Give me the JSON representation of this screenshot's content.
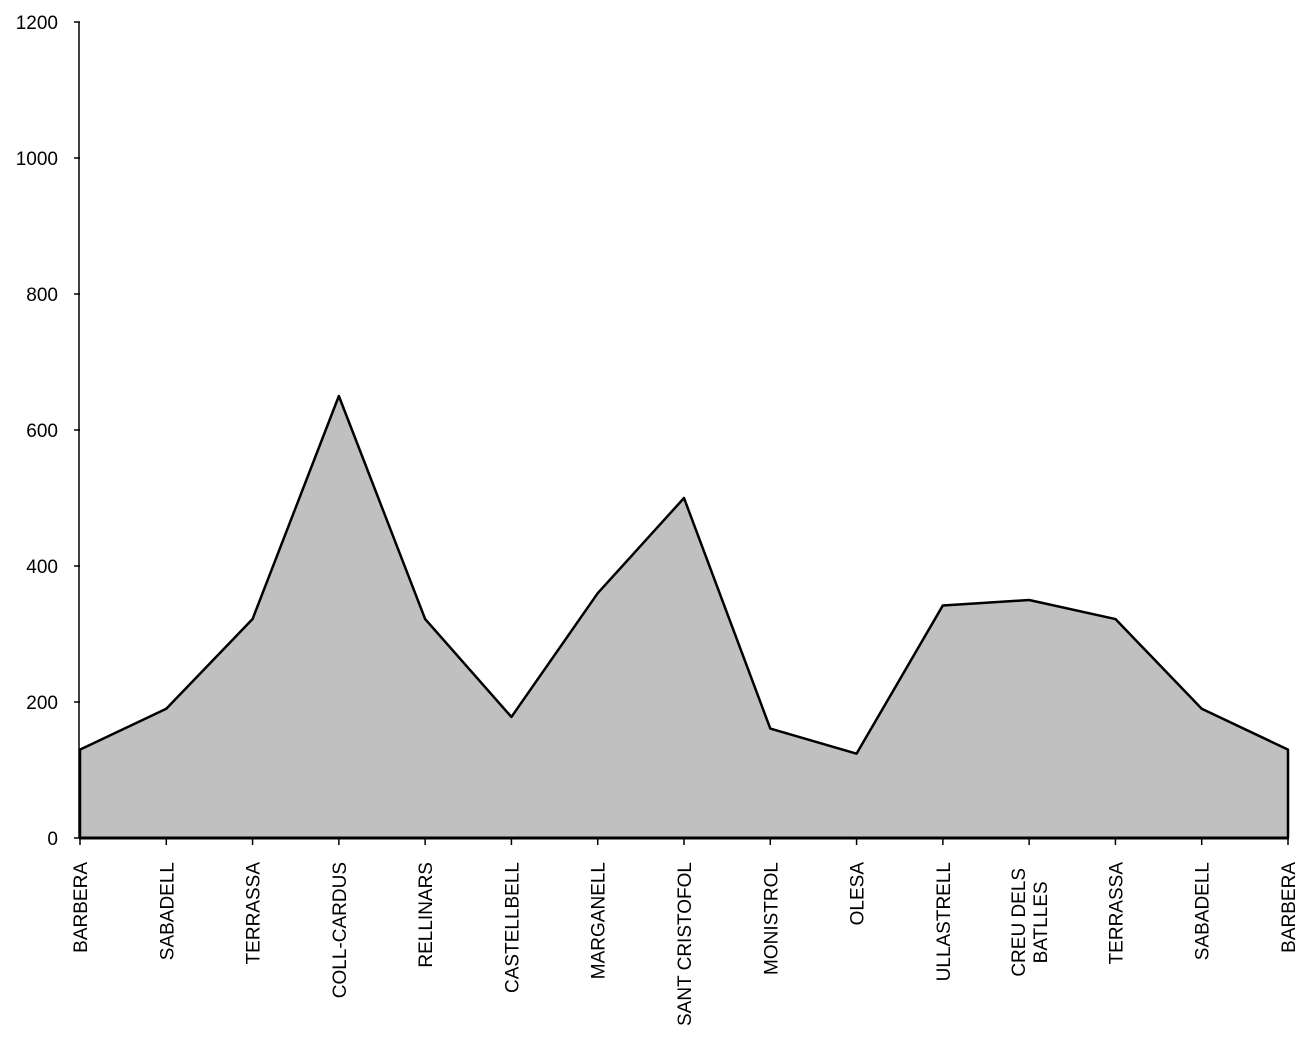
{
  "chart_data": {
    "type": "area",
    "categories": [
      [
        "BARBERA"
      ],
      [
        "SABADELL"
      ],
      [
        "TERRASSA"
      ],
      [
        "COLL-CARDUS"
      ],
      [
        "RELLINARS"
      ],
      [
        "CASTELLBELL"
      ],
      [
        "MARGANELL"
      ],
      [
        "SANT CRISTOFOL"
      ],
      [
        "MONISTROL"
      ],
      [
        "OLESA"
      ],
      [
        "ULLASTRELL"
      ],
      [
        "CREU DELS",
        "BATLLES"
      ],
      [
        "TERRASSA"
      ],
      [
        "SABADELL"
      ],
      [
        "BARBERA"
      ]
    ],
    "values": [
      130,
      190,
      322,
      650,
      322,
      178,
      360,
      500,
      161,
      124,
      342,
      350,
      322,
      190,
      130
    ],
    "title": "",
    "xlabel": "",
    "ylabel": "",
    "ylim": [
      0,
      1200
    ],
    "yticks": [
      0,
      200,
      400,
      600,
      800,
      1000,
      1200
    ],
    "grid": false,
    "legend": "none",
    "colors": {
      "fill": "#c0c0c0",
      "line": "#000000",
      "axis": "#000000"
    }
  }
}
